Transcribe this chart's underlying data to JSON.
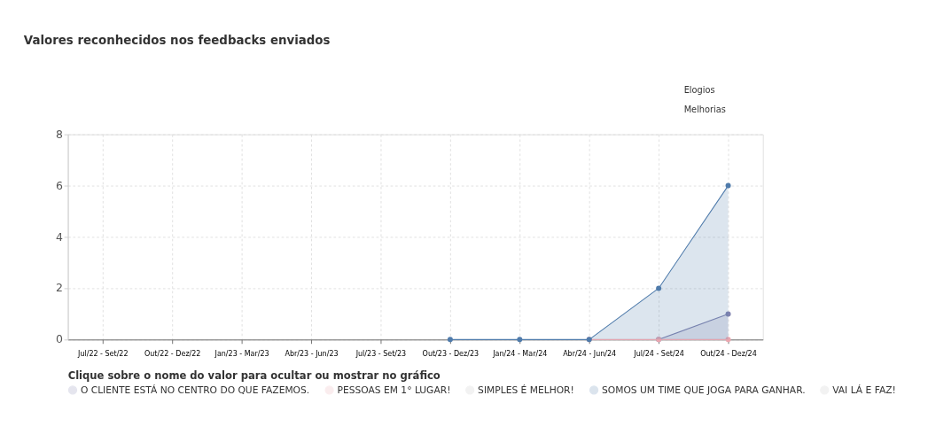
{
  "chart_data": {
    "type": "line",
    "title": "Valores reconhecidos nos feedbacks enviados",
    "categories": [
      "Jul/22 - Set/22",
      "Out/22 - Dez/22",
      "Jan/23 - Mar/23",
      "Abr/23 - Jun/23",
      "Jul/23 - Set/23",
      "Out/23 - Dez/23",
      "Jan/24 - Mar/24",
      "Abr/24 - Jun/24",
      "Jul/24 - Set/24",
      "Out/24 - Dez/24"
    ],
    "series": [
      {
        "name": "O CLIENTE ESTÁ NO CENTRO DO QUE FAZEMOS.",
        "color": "#8083b0",
        "type": "area",
        "values": [
          null,
          null,
          null,
          null,
          null,
          null,
          null,
          null,
          0,
          1
        ]
      },
      {
        "name": "PESSOAS EM 1° LUGAR!",
        "color": "#eba7b0",
        "values": [
          null,
          null,
          null,
          null,
          null,
          null,
          null,
          0,
          0,
          0
        ]
      },
      {
        "name": "SIMPLES É MELHOR!",
        "color": "#c0c0c0",
        "values": [
          null,
          null,
          null,
          null,
          null,
          null,
          null,
          null,
          null,
          null
        ]
      },
      {
        "name": "SOMOS UM TIME QUE JOGA PARA GANHAR.",
        "color": "#4f7bab",
        "type": "area",
        "values": [
          null,
          null,
          null,
          null,
          null,
          0,
          0,
          0,
          2,
          6
        ]
      },
      {
        "name": "VAI LÁ E FAZ!",
        "color": "#c0c0c0",
        "values": [
          null,
          null,
          null,
          null,
          null,
          null,
          null,
          null,
          null,
          null
        ]
      }
    ],
    "ylim": [
      0,
      8
    ],
    "yticks": [
      0,
      2,
      4,
      6,
      8
    ],
    "grid": true,
    "marker": "circle",
    "legend": "bottom",
    "legend_title": "Clique sobre o nome do valor para ocultar ou mostrar no gráfico",
    "annotations": [
      "Elogios",
      "Melhorias"
    ]
  }
}
